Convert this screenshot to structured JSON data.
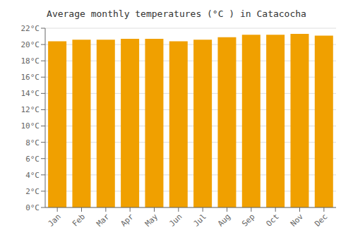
{
  "chart_data": {
    "type": "bar",
    "title": "Average monthly temperatures (°C ) in Catacocha",
    "categories": [
      "Jan",
      "Feb",
      "Mar",
      "Apr",
      "May",
      "Jun",
      "Jul",
      "Aug",
      "Sep",
      "Oct",
      "Nov",
      "Dec"
    ],
    "values": [
      20.4,
      20.6,
      20.6,
      20.7,
      20.7,
      20.4,
      20.6,
      20.9,
      21.2,
      21.2,
      21.3,
      21.1
    ],
    "color": "#F0A000",
    "ylim": [
      0,
      22
    ],
    "yticks": [
      {
        "value": 0,
        "label": "0°C"
      },
      {
        "value": 2,
        "label": "2°C"
      },
      {
        "value": 4,
        "label": "4°C"
      },
      {
        "value": 6,
        "label": "6°C"
      },
      {
        "value": 8,
        "label": "8°C"
      },
      {
        "value": 10,
        "label": "10°C"
      },
      {
        "value": 12,
        "label": "12°C"
      },
      {
        "value": 14,
        "label": "14°C"
      },
      {
        "value": 16,
        "label": "16°C"
      },
      {
        "value": 18,
        "label": "18°C"
      },
      {
        "value": 20,
        "label": "20°C"
      },
      {
        "value": 22,
        "label": "22°C"
      }
    ],
    "grid": true
  }
}
